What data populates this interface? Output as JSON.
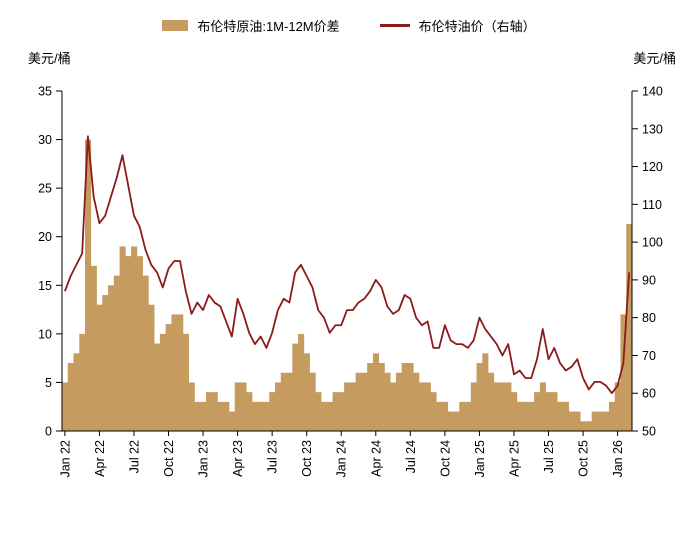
{
  "legend": {
    "bar_label": "布伦特原油:1M-12M价差",
    "line_label": "布伦特油价（右轴）"
  },
  "axes": {
    "left_unit": "美元/桶",
    "right_unit": "美元/桶"
  },
  "colors": {
    "bar": "#C59B5F",
    "line": "#8B1B1B",
    "axis": "#000000"
  },
  "chart_data": {
    "type": "bar+line",
    "title": "",
    "x_tick_labels": [
      "Jan 22",
      "Apr 22",
      "Jul 22",
      "Oct 22",
      "Jan 23",
      "Apr 23",
      "Jul 23",
      "Oct 23",
      "Jan 24",
      "Apr 24",
      "Jul 24",
      "Oct 24",
      "Jan 25",
      "Apr 25",
      "Jul 25",
      "Oct 25",
      "Jan 26"
    ],
    "x_tick_step": 6,
    "points_per_month": 2,
    "left_axis": {
      "min": 0,
      "max": 35,
      "ticks": [
        0,
        5,
        10,
        15,
        20,
        25,
        30,
        35
      ],
      "label": "美元/桶"
    },
    "right_axis": {
      "min": 50,
      "max": 140,
      "ticks": [
        50,
        60,
        70,
        80,
        90,
        100,
        110,
        120,
        130,
        140
      ],
      "label": "美元/桶"
    },
    "grid": false,
    "legend_position": "top",
    "series": [
      {
        "name": "布伦特原油:1M-12M价差",
        "type": "bar",
        "axis": "left",
        "values": [
          5,
          7,
          8,
          10,
          30,
          17,
          13,
          14,
          15,
          16,
          19,
          18,
          19,
          18,
          16,
          13,
          9,
          10,
          11,
          12,
          12,
          10,
          5,
          3,
          3,
          4,
          4,
          3,
          3,
          2,
          5,
          5,
          4,
          3,
          3,
          3,
          4,
          5,
          6,
          6,
          9,
          10,
          8,
          6,
          4,
          3,
          3,
          4,
          4,
          5,
          5,
          6,
          6,
          7,
          8,
          7,
          6,
          5,
          6,
          7,
          7,
          6,
          5,
          5,
          4,
          3,
          3,
          2,
          2,
          3,
          3,
          5,
          7,
          8,
          6,
          5,
          5,
          5,
          4,
          3,
          3,
          3,
          4,
          5,
          4,
          4,
          3,
          3,
          2,
          2,
          1,
          1,
          2,
          2,
          2,
          3,
          5,
          12,
          21.3
        ]
      },
      {
        "name": "布伦特油价（右轴）",
        "type": "line",
        "axis": "right",
        "values": [
          87,
          91,
          94,
          97,
          128,
          112,
          105,
          107,
          112,
          117,
          123,
          115,
          107,
          104,
          98,
          94,
          92,
          88,
          93,
          95,
          95,
          87,
          81,
          84,
          82,
          86,
          84,
          83,
          79,
          75,
          85,
          81,
          76,
          73,
          75,
          72,
          76,
          82,
          85,
          84,
          92,
          94,
          91,
          88,
          82,
          80,
          76,
          78,
          78,
          82,
          82,
          84,
          85,
          87,
          90,
          88,
          83,
          81,
          82,
          86,
          85,
          80,
          78,
          79,
          72,
          72,
          78,
          74,
          73,
          73,
          72,
          74,
          80,
          77,
          75,
          73,
          70,
          73,
          65,
          66,
          64,
          64,
          69,
          77,
          69,
          72,
          68,
          66,
          67,
          69,
          64,
          61,
          63,
          63,
          62,
          60,
          62,
          68,
          92
        ]
      }
    ]
  }
}
